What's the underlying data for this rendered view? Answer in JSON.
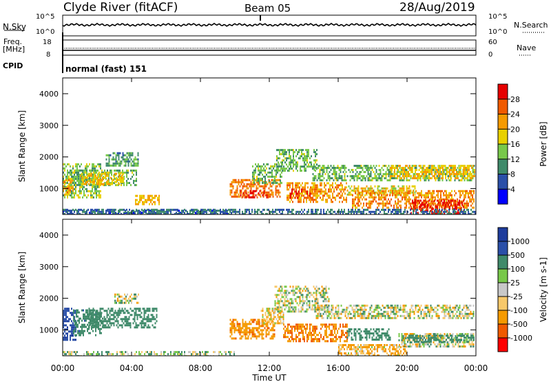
{
  "header": {
    "station": "Clyde River (fitACF)",
    "beam": "Beam 05",
    "date": "28/Aug/2019"
  },
  "top_panels": {
    "nsky_label": "N.Sky",
    "nsky_ticks": [
      "10^5",
      "10^0"
    ],
    "nsearch_label": "N.Search",
    "nsearch_ticks": [
      "10^5",
      "10^0"
    ],
    "freq_label": "Freq.",
    "freq_unit": "[MHz]",
    "freq_ticks": [
      "18",
      "8"
    ],
    "nave_label": "Nave",
    "nave_ticks": [
      "60",
      "0"
    ],
    "cpid_label": "CPID",
    "cpid_text": "normal (fast) 151"
  },
  "colors": {
    "power_scale": [
      "#0000ff",
      "#2a4fa8",
      "#3f8a6a",
      "#78c84a",
      "#e8d000",
      "#f59a00",
      "#f05a00",
      "#e60000"
    ],
    "velocity_scale": [
      "#ff0000",
      "#f05a00",
      "#f59a00",
      "#f7c86a",
      "#c8c8c8",
      "#78c84a",
      "#3f8a6a",
      "#2a4fa8",
      "#1e3c9c"
    ]
  },
  "chart_data": [
    {
      "type": "heatmap",
      "title": "",
      "xlabel": "Time UT",
      "ylabel": "Slant Range [km]",
      "x_ticks": [
        "00:00",
        "04:00",
        "08:00",
        "12:00",
        "16:00",
        "20:00",
        "00:00"
      ],
      "xlim_hours": [
        0,
        24
      ],
      "y_ticks": [
        1000,
        2000,
        3000,
        4000
      ],
      "ylim_km": [
        180,
        4500
      ],
      "colorbar": {
        "label": "Power [dB]",
        "ticks": [
          4,
          8,
          12,
          16,
          20,
          24,
          28
        ],
        "range": [
          0,
          30
        ]
      },
      "regions": [
        {
          "t": [
            0.0,
            2.2
          ],
          "r": [
            700,
            1800
          ],
          "value": 14
        },
        {
          "t": [
            0.0,
            0.6
          ],
          "r": [
            800,
            1300
          ],
          "value": 22
        },
        {
          "t": [
            0.4,
            4.3
          ],
          "r": [
            1100,
            1600
          ],
          "value": 13
        },
        {
          "t": [
            1.0,
            3.5
          ],
          "r": [
            1150,
            1500
          ],
          "value": 20
        },
        {
          "t": [
            2.5,
            4.4
          ],
          "r": [
            1700,
            2150
          ],
          "value": 11
        },
        {
          "t": [
            4.2,
            5.6
          ],
          "r": [
            500,
            800
          ],
          "value": 20
        },
        {
          "t": [
            0.0,
            9.8
          ],
          "r": [
            180,
            330
          ],
          "value": 7
        },
        {
          "t": [
            9.7,
            12.6
          ],
          "r": [
            750,
            1300
          ],
          "value": 24
        },
        {
          "t": [
            10.3,
            12.0
          ],
          "r": [
            700,
            950
          ],
          "value": 29
        },
        {
          "t": [
            11.0,
            12.7
          ],
          "r": [
            1200,
            1800
          ],
          "value": 13
        },
        {
          "t": [
            12.4,
            14.8
          ],
          "r": [
            1550,
            2250
          ],
          "value": 13
        },
        {
          "t": [
            13.0,
            16.5
          ],
          "r": [
            600,
            1200
          ],
          "value": 22
        },
        {
          "t": [
            13.2,
            14.5
          ],
          "r": [
            700,
            1000
          ],
          "value": 27
        },
        {
          "t": [
            14.5,
            23.9
          ],
          "r": [
            1250,
            1750
          ],
          "value": 13
        },
        {
          "t": [
            19.0,
            23.9
          ],
          "r": [
            1350,
            1750
          ],
          "value": 20
        },
        {
          "t": [
            16.5,
            20.5
          ],
          "r": [
            780,
            1100
          ],
          "value": 18
        },
        {
          "t": [
            16.8,
            23.9
          ],
          "r": [
            400,
            950
          ],
          "value": 23
        },
        {
          "t": [
            20.2,
            23.3
          ],
          "r": [
            180,
            650
          ],
          "value": 29
        },
        {
          "t": [
            0.0,
            24.0
          ],
          "r": [
            180,
            360
          ],
          "value": 8
        }
      ]
    },
    {
      "type": "heatmap",
      "title": "",
      "xlabel": "Time UT",
      "ylabel": "Slant Range [km]",
      "x_ticks": [
        "00:00",
        "04:00",
        "08:00",
        "12:00",
        "16:00",
        "20:00",
        "00:00"
      ],
      "xlim_hours": [
        0,
        24
      ],
      "y_ticks": [
        1000,
        2000,
        3000,
        4000
      ],
      "ylim_km": [
        180,
        4500
      ],
      "colorbar": {
        "label": "Velocity [m s-1]",
        "ticks": [
          -1000,
          -500,
          -100,
          -25,
          25,
          100,
          500,
          1000
        ]
      },
      "regions": [
        {
          "t": [
            0.0,
            0.8
          ],
          "r": [
            700,
            1700
          ],
          "value": 900
        },
        {
          "t": [
            0.6,
            2.3
          ],
          "r": [
            800,
            1650
          ],
          "value": 350
        },
        {
          "t": [
            1.5,
            5.5
          ],
          "r": [
            1100,
            1700
          ],
          "value": 320
        },
        {
          "t": [
            3.0,
            4.4
          ],
          "r": [
            1850,
            2150
          ],
          "value": 0
        },
        {
          "t": [
            0.0,
            10.0
          ],
          "r": [
            180,
            330
          ],
          "value": 60
        },
        {
          "t": [
            9.7,
            12.3
          ],
          "r": [
            750,
            1350
          ],
          "value": -400
        },
        {
          "t": [
            11.5,
            12.8
          ],
          "r": [
            1200,
            1700
          ],
          "value": -60
        },
        {
          "t": [
            12.3,
            15.5
          ],
          "r": [
            1600,
            2400
          ],
          "value": 0
        },
        {
          "t": [
            12.8,
            16.5
          ],
          "r": [
            650,
            1200
          ],
          "value": -480
        },
        {
          "t": [
            14.7,
            23.9
          ],
          "r": [
            1400,
            1800
          ],
          "value": 0
        },
        {
          "t": [
            16.5,
            19.0
          ],
          "r": [
            700,
            1050
          ],
          "value": 300
        },
        {
          "t": [
            19.5,
            23.9
          ],
          "r": [
            450,
            900
          ],
          "value": 0
        },
        {
          "t": [
            20.0,
            23.9
          ],
          "r": [
            650,
            850
          ],
          "value": 250
        },
        {
          "t": [
            16.0,
            20.0
          ],
          "r": [
            180,
            550
          ],
          "value": -120
        }
      ]
    }
  ]
}
